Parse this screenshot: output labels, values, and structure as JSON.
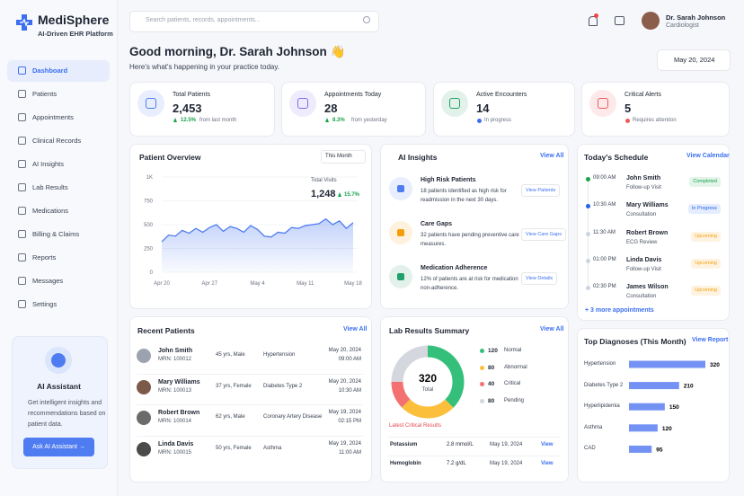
{
  "brand": {
    "name": "MediSphere",
    "tagline": "AI-Driven EHR Platform"
  },
  "search_placeholder": "Search patients, records, appointments...",
  "user": {
    "name": "Dr. Sarah Johnson",
    "role": "Cardiologist"
  },
  "nav": [
    "Dashboard",
    "Patients",
    "Appointments",
    "Clinical Records",
    "AI Insights",
    "Lab Results",
    "Medications",
    "Billing & Claims",
    "Reports",
    "Messages",
    "Settings"
  ],
  "assistant": {
    "title": "AI Assistant",
    "text": "Get intelligent insights and recommendations based on patient data.",
    "button": "Ask AI Assistant →"
  },
  "greeting": "Good morning, Dr. Sarah Johnson 👋",
  "subgreeting": "Here's what's happening in your practice today.",
  "date": "May 20, 2024",
  "stats": [
    {
      "label": "Total Patients",
      "value": "2,453",
      "change": "12.5%",
      "note": "from last month",
      "color": "#4f7cf0"
    },
    {
      "label": "Appointments Today",
      "value": "28",
      "change": "8.3%",
      "note": "from yesterday",
      "color": "#7c6cf0"
    },
    {
      "label": "Active Encounters",
      "value": "14",
      "note": "In progress",
      "color": "#22a06b"
    },
    {
      "label": "Critical Alerts",
      "value": "5",
      "note": "Requires attention",
      "color": "#ef5b5b"
    }
  ],
  "patient_overview": {
    "title": "Patient Overview",
    "period": "This Month",
    "total_label": "Total Visits",
    "total": "1,248",
    "total_change": "15.7%",
    "categories": [
      "Apr 20",
      null,
      null,
      null,
      null,
      null,
      null,
      "Apr 27",
      null,
      null,
      null,
      null,
      null,
      null,
      "May 4",
      null,
      null,
      null,
      null,
      null,
      null,
      "May 11",
      null,
      null,
      null,
      null,
      null,
      null,
      "May 18"
    ],
    "values": [
      320,
      390,
      380,
      440,
      410,
      460,
      420,
      470,
      500,
      430,
      480,
      460,
      420,
      490,
      450,
      380,
      370,
      420,
      410,
      470,
      460,
      490,
      500,
      510,
      560,
      500,
      540,
      460,
      520
    ],
    "ylim": [
      0,
      1000
    ],
    "yticks": [
      0,
      250,
      500,
      750,
      {
        "value": 1000,
        "label": "1K"
      }
    ],
    "color": "#4f7cf0",
    "grid": true
  },
  "ai_insights": {
    "title": "AI Insights",
    "view_all": "View All",
    "items": [
      {
        "title": "High Risk Patients",
        "text": "18 patients identified as high risk for readmission in the next 30 days.",
        "action": "View Patients",
        "color": "#4f7cf0"
      },
      {
        "title": "Care Gaps",
        "text": "32 patients have pending preventive care measures.",
        "action": "View Care Gaps",
        "color": "#f59e0b"
      },
      {
        "title": "Medication Adherence",
        "text": "12% of patients are at risk for medication non-adherence.",
        "action": "View Details",
        "color": "#22a06b"
      }
    ]
  },
  "schedule": {
    "title": "Today's Schedule",
    "view": "View Calendar",
    "more": "+ 3 more appointments",
    "items": [
      {
        "time": "09:00 AM",
        "name": "John Smith",
        "type": "Follow-up Visit",
        "status": "Completed",
        "color": "#16a34a"
      },
      {
        "time": "10:30 AM",
        "name": "Mary Williams",
        "type": "Consultation",
        "status": "In Progress",
        "color": "#2563eb"
      },
      {
        "time": "11:30 AM",
        "name": "Robert Brown",
        "type": "ECG Review",
        "status": "Upcoming",
        "color": "#f59e0b"
      },
      {
        "time": "01:00 PM",
        "name": "Linda Davis",
        "type": "Follow-up Visit",
        "status": "Upcoming",
        "color": "#f59e0b"
      },
      {
        "time": "02:30 PM",
        "name": "James Wilson",
        "type": "Consultation",
        "status": "Upcoming",
        "color": "#f59e0b"
      }
    ]
  },
  "recent_patients": {
    "title": "Recent Patients",
    "view_all": "View All",
    "rows": [
      {
        "name": "John Smith",
        "mrn": "MRN: 100012",
        "demo": "45 yrs, Male",
        "condition": "Hypertension",
        "date": "May 20, 2024",
        "time": "09:00 AM"
      },
      {
        "name": "Mary Williams",
        "mrn": "MRN: 100013",
        "demo": "37 yrs, Female",
        "condition": "Diabetes Type 2",
        "date": "May 20, 2024",
        "time": "10:30 AM"
      },
      {
        "name": "Robert Brown",
        "mrn": "MRN: 100014",
        "demo": "62 yrs, Male",
        "condition": "Coronary Artery Disease",
        "date": "May 19, 2024",
        "time": "02:15 PM"
      },
      {
        "name": "Linda Davis",
        "mrn": "MRN: 100015",
        "demo": "50 yrs, Female",
        "condition": "Asthma",
        "date": "May 19, 2024",
        "time": "11:00 AM"
      }
    ]
  },
  "lab_summary": {
    "title": "Lab Results Summary",
    "view_all": "View All",
    "total": 320,
    "total_label": "Total",
    "segments": [
      {
        "name": "Normal",
        "value": 120,
        "color": "#34c07a"
      },
      {
        "name": "Abnormal",
        "value": 80,
        "color": "#fbbf3c"
      },
      {
        "name": "Critical",
        "value": 40,
        "color": "#f47171"
      },
      {
        "name": "Pending",
        "value": 80,
        "color": "#d4d7dd"
      }
    ],
    "critical_title": "Latest Critical Results",
    "results": [
      {
        "test": "Potassium",
        "value": "2.8 mmol/L",
        "date": "May 19, 2024",
        "action": "View"
      },
      {
        "test": "Hemoglobin",
        "value": "7.2 g/dL",
        "date": "May 19, 2024",
        "action": "View"
      }
    ]
  },
  "diagnoses": {
    "type": "bar",
    "title": "Top Diagnoses (This Month)",
    "view": "View Report",
    "categories": [
      "Hypertension",
      "Diabetes Type 2",
      "Hyperlipidemia",
      "Asthma",
      "CAD"
    ],
    "values": [
      320,
      210,
      150,
      120,
      95
    ],
    "color": "#5b7ff2"
  }
}
